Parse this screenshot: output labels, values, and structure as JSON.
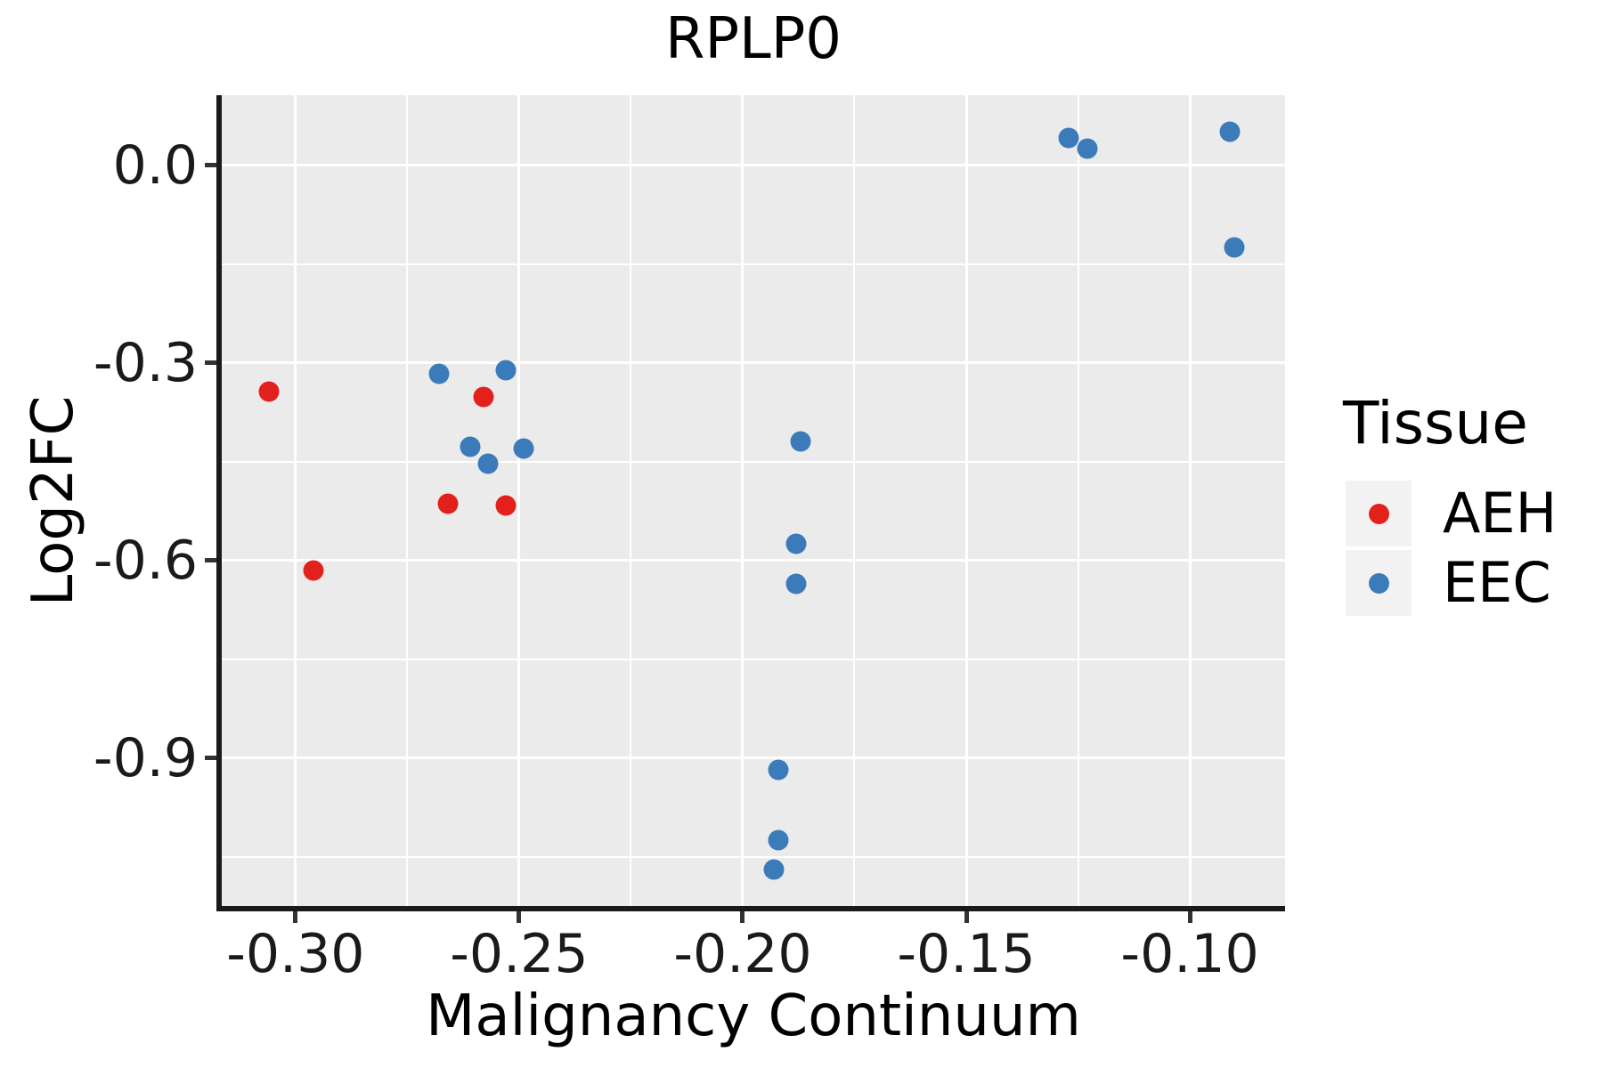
{
  "title": "RPLP0",
  "axes": {
    "x": {
      "label": "Malignancy Continuum",
      "tick_labels": [
        "-0.30",
        "-0.25",
        "-0.20",
        "-0.15",
        "-0.10"
      ],
      "tick_values": [
        -0.3,
        -0.25,
        -0.2,
        -0.15,
        -0.1
      ],
      "minor_values": [
        -0.275,
        -0.225,
        -0.175,
        -0.125
      ]
    },
    "y": {
      "label": "Log2FC",
      "tick_labels": [
        "0.0",
        "-0.3",
        "-0.6",
        "-0.9"
      ],
      "tick_values": [
        0.0,
        -0.3,
        -0.6,
        -0.9
      ],
      "minor_values": [
        -0.15,
        -0.45,
        -0.75,
        -1.05
      ]
    }
  },
  "legend": {
    "title": "Tissue",
    "items": [
      {
        "label": "AEH",
        "color": "#E3211C"
      },
      {
        "label": "EEC",
        "color": "#3B7BBA"
      }
    ]
  },
  "colors": {
    "panel_background": "#EBEBEB",
    "grid": "#FFFFFF",
    "axis": "#1a1a1a",
    "aeh": "#E3211C",
    "eec": "#3B7BBA",
    "legend_key_background": "#F2F2F2"
  },
  "chart_data": {
    "type": "scatter",
    "title": "RPLP0",
    "xlabel": "Malignancy Continuum",
    "ylabel": "Log2FC",
    "xlim": [
      -0.3165,
      -0.0787
    ],
    "ylim": [
      -1.126,
      0.1065
    ],
    "grid": true,
    "legend_position": "right",
    "series": [
      {
        "name": "AEH",
        "color": "#E3211C",
        "points": [
          [
            -0.306,
            -0.344
          ],
          [
            -0.296,
            -0.615
          ],
          [
            -0.258,
            -0.352
          ],
          [
            -0.266,
            -0.514
          ],
          [
            -0.253,
            -0.516
          ]
        ]
      },
      {
        "name": "EEC",
        "color": "#3B7BBA",
        "points": [
          [
            -0.268,
            -0.316
          ],
          [
            -0.253,
            -0.311
          ],
          [
            -0.261,
            -0.427
          ],
          [
            -0.257,
            -0.453
          ],
          [
            -0.249,
            -0.43
          ],
          [
            -0.187,
            -0.419
          ],
          [
            -0.188,
            -0.574
          ],
          [
            -0.188,
            -0.636
          ],
          [
            -0.192,
            -0.918
          ],
          [
            -0.192,
            -1.025
          ],
          [
            -0.193,
            -1.069
          ],
          [
            -0.127,
            0.042
          ],
          [
            -0.123,
            0.026
          ],
          [
            -0.091,
            0.051
          ],
          [
            -0.09,
            -0.124
          ]
        ]
      }
    ]
  }
}
